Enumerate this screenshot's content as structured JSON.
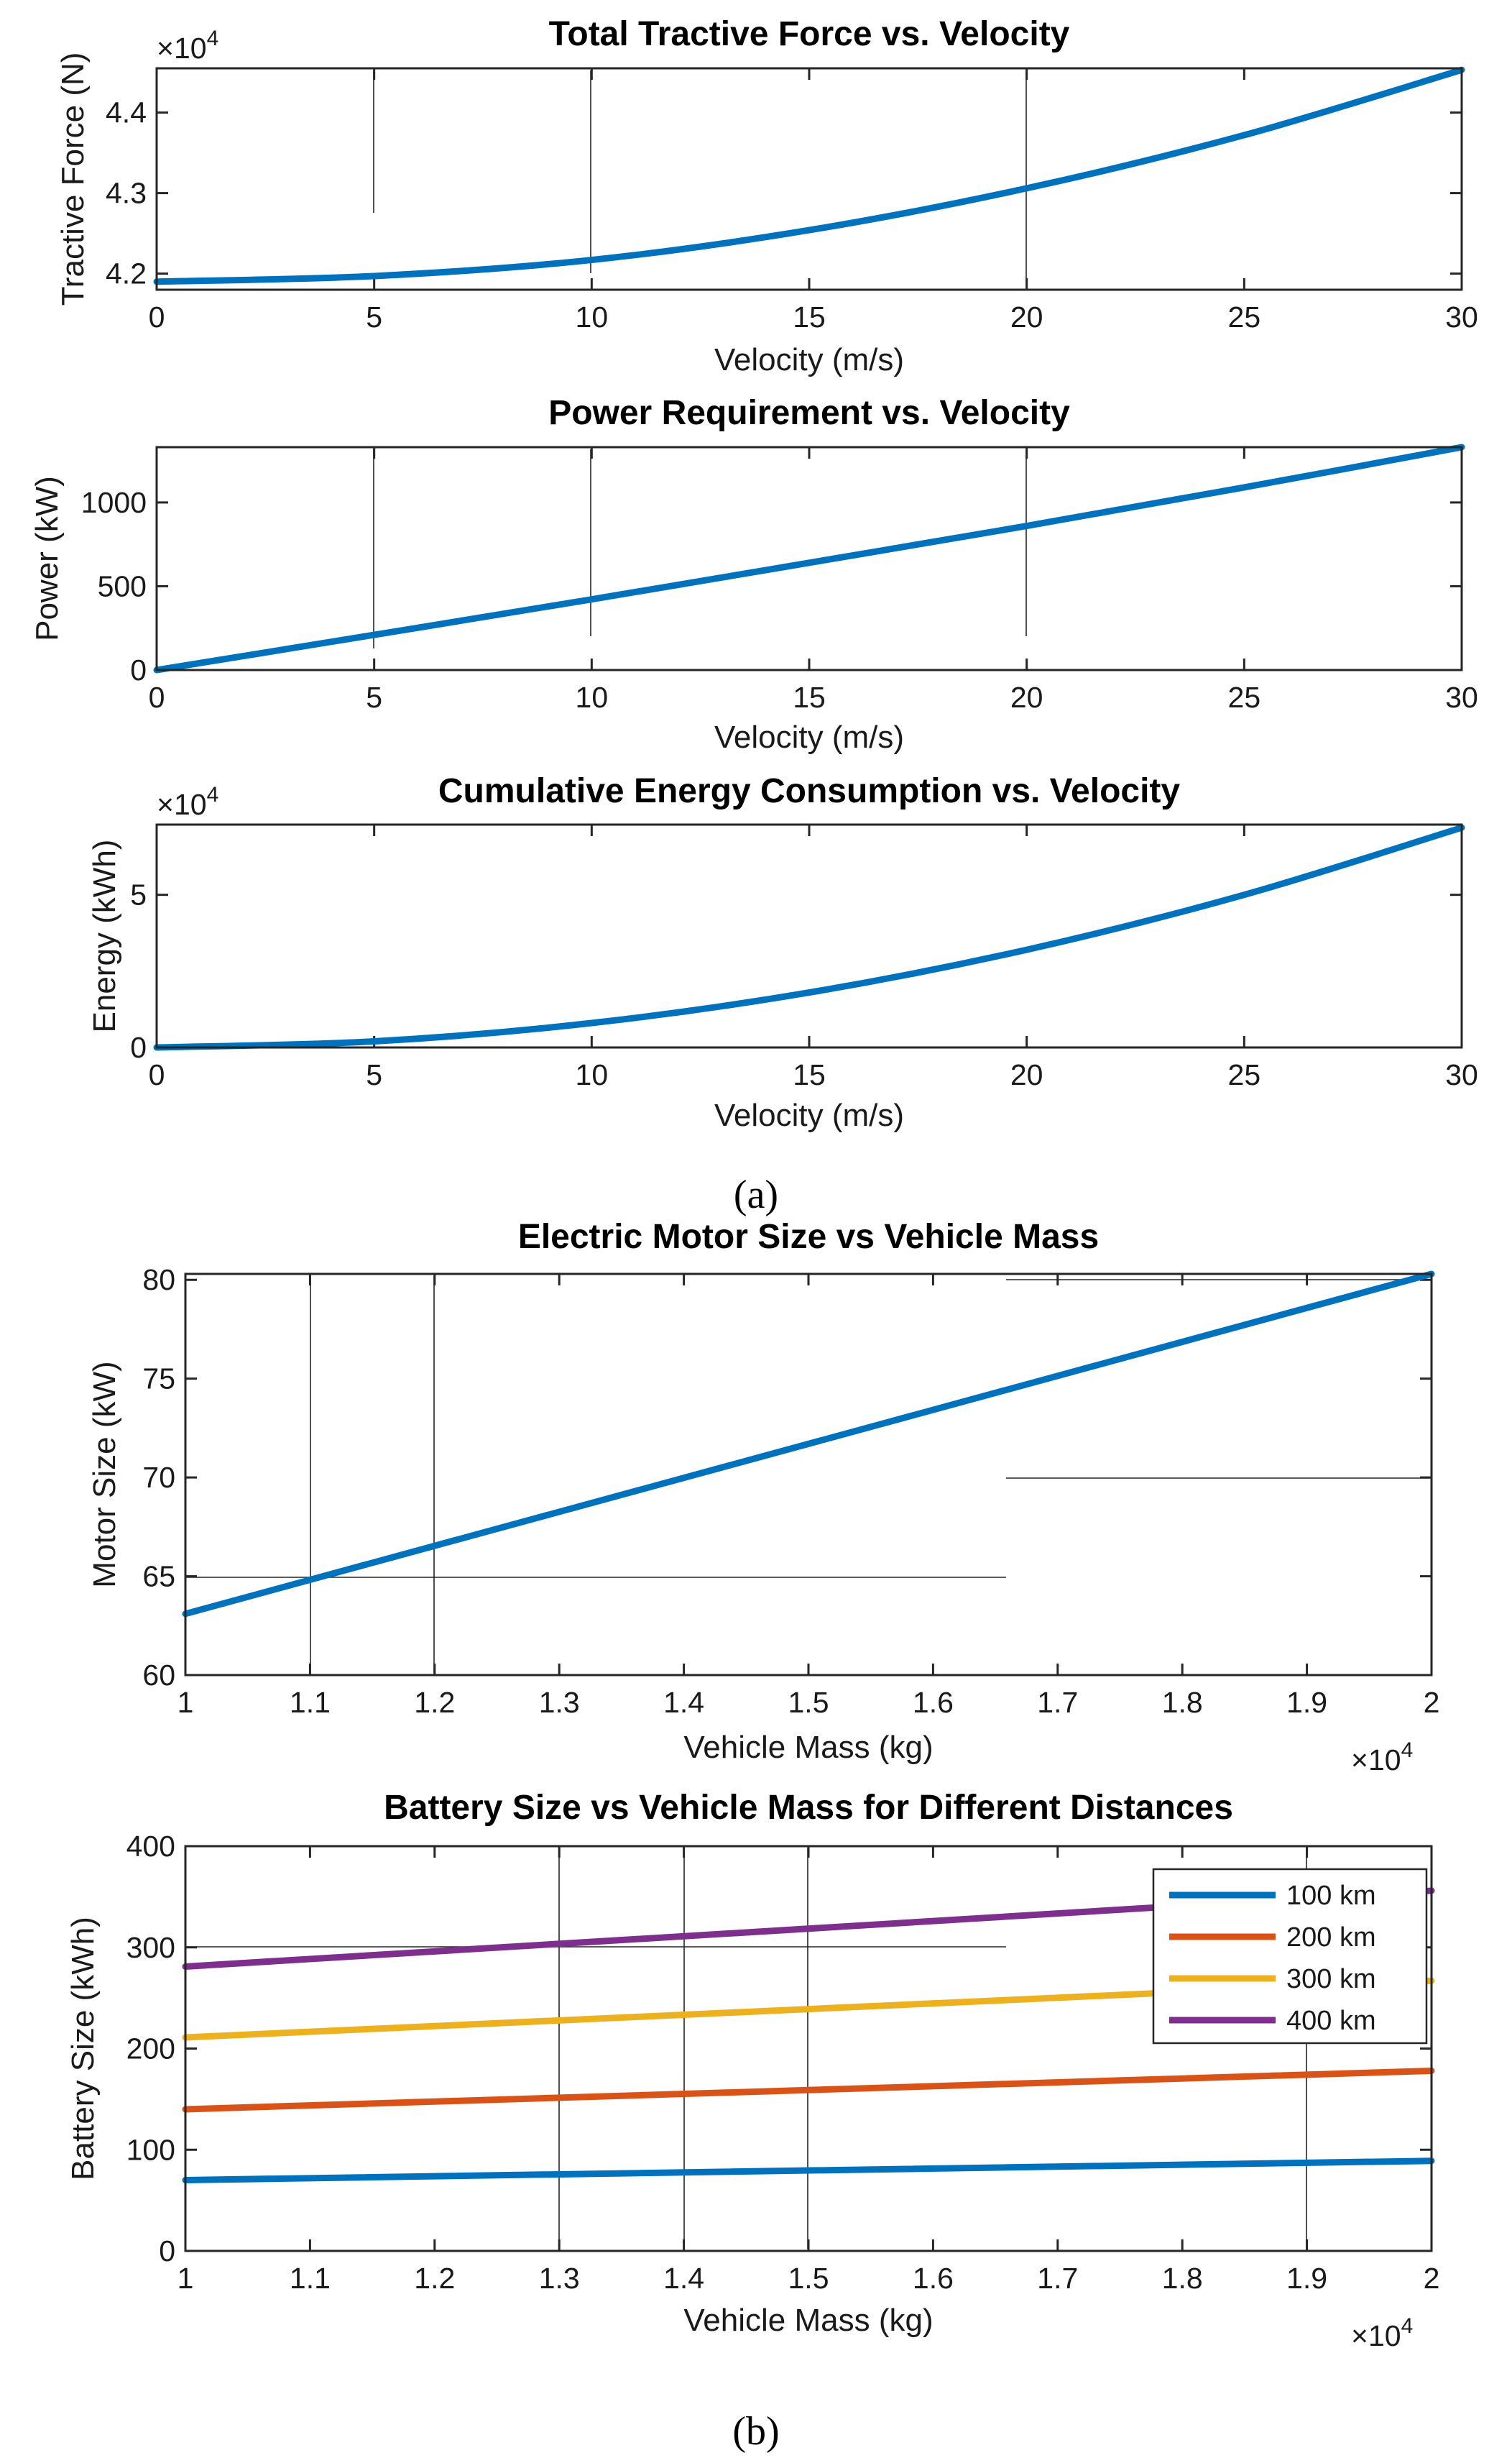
{
  "captions": {
    "a": "(a)",
    "b": "(b)"
  },
  "chart_data": [
    {
      "type": "line",
      "title": "Total Tractive Force vs. Velocity",
      "xlabel": "Velocity (m/s)",
      "ylabel": "Tractive Force (N)",
      "exponent_label": "×10",
      "exponent_power": "4",
      "xlim": [
        0,
        30
      ],
      "ylim": [
        4.18,
        4.455
      ],
      "xticks": [
        0,
        5,
        10,
        15,
        20,
        25,
        30
      ],
      "yticks": [
        4.2,
        4.3,
        4.4
      ],
      "xtick_labels": [
        "0",
        "5",
        "10",
        "15",
        "20",
        "25",
        "30"
      ],
      "ytick_labels": [
        "4.2",
        "4.3",
        "4.4"
      ],
      "series": [
        {
          "name": "Tractive Force",
          "color": "#0072BD",
          "x": [
            0,
            5,
            10,
            15,
            20,
            25,
            30
          ],
          "y": [
            4.19,
            4.197,
            4.217,
            4.254,
            4.306,
            4.372,
            4.453
          ]
        }
      ]
    },
    {
      "type": "line",
      "title": "Power Requirement vs. Velocity",
      "xlabel": "Velocity (m/s)",
      "ylabel": "Power (kW)",
      "xlim": [
        0,
        30
      ],
      "ylim": [
        0,
        1330
      ],
      "xticks": [
        0,
        5,
        10,
        15,
        20,
        25,
        30
      ],
      "yticks": [
        0,
        500,
        1000
      ],
      "xtick_labels": [
        "0",
        "5",
        "10",
        "15",
        "20",
        "25",
        "30"
      ],
      "ytick_labels": [
        "0",
        "500",
        "1000"
      ],
      "series": [
        {
          "name": "Power",
          "color": "#0072BD",
          "x": [
            0,
            5,
            10,
            15,
            20,
            25,
            30
          ],
          "y": [
            0,
            210,
            422,
            640,
            860,
            1090,
            1330
          ]
        }
      ]
    },
    {
      "type": "line",
      "title": "Cumulative Energy Consumption vs. Velocity",
      "xlabel": "Velocity (m/s)",
      "ylabel": "Energy (kWh)",
      "exponent_label": "×10",
      "exponent_power": "4",
      "xlim": [
        0,
        30
      ],
      "ylim": [
        0,
        7.3
      ],
      "xticks": [
        0,
        5,
        10,
        15,
        20,
        25,
        30
      ],
      "yticks": [
        0,
        5
      ],
      "xtick_labels": [
        "0",
        "5",
        "10",
        "15",
        "20",
        "25",
        "30"
      ],
      "ytick_labels": [
        "0",
        "5"
      ],
      "series": [
        {
          "name": "Energy",
          "color": "#0072BD",
          "x": [
            0,
            5,
            10,
            15,
            20,
            25,
            30
          ],
          "y": [
            0,
            0.2,
            0.8,
            1.8,
            3.2,
            5.0,
            7.2
          ]
        }
      ]
    },
    {
      "type": "line",
      "title": "Electric Motor Size vs Vehicle Mass",
      "xlabel": "Vehicle Mass (kg)",
      "ylabel": "Motor Size (kW)",
      "exponent_label": "×10",
      "exponent_power": "4",
      "xlim": [
        1,
        2
      ],
      "ylim": [
        60,
        80.3
      ],
      "xticks": [
        1,
        1.1,
        1.2,
        1.3,
        1.4,
        1.5,
        1.6,
        1.7,
        1.8,
        1.9,
        2
      ],
      "yticks": [
        60,
        65,
        70,
        75,
        80
      ],
      "xtick_labels": [
        "1",
        "1.1",
        "1.2",
        "1.3",
        "1.4",
        "1.5",
        "1.6",
        "1.7",
        "1.8",
        "1.9",
        "2"
      ],
      "ytick_labels": [
        "60",
        "65",
        "70",
        "75",
        "80"
      ],
      "series": [
        {
          "name": "Motor Size",
          "color": "#0072BD",
          "x": [
            1,
            2
          ],
          "y": [
            63.1,
            80.3
          ]
        }
      ]
    },
    {
      "type": "line",
      "title": "Battery Size vs Vehicle Mass for Different Distances",
      "xlabel": "Vehicle Mass (kg)",
      "ylabel": "Battery Size (kWh)",
      "exponent_label": "×10",
      "exponent_power": "4",
      "xlim": [
        1,
        2
      ],
      "ylim": [
        0,
        400
      ],
      "xticks": [
        1,
        1.1,
        1.2,
        1.3,
        1.4,
        1.5,
        1.6,
        1.7,
        1.8,
        1.9,
        2
      ],
      "yticks": [
        0,
        100,
        200,
        300,
        400
      ],
      "xtick_labels": [
        "1",
        "1.1",
        "1.2",
        "1.3",
        "1.4",
        "1.5",
        "1.6",
        "1.7",
        "1.8",
        "1.9",
        "2"
      ],
      "ytick_labels": [
        "0",
        "100",
        "200",
        "300",
        "400"
      ],
      "legend": "top-right",
      "series": [
        {
          "name": "100 km",
          "color": "#0072BD",
          "x": [
            1,
            2
          ],
          "y": [
            70,
            89
          ]
        },
        {
          "name": "200 km",
          "color": "#D95319",
          "x": [
            1,
            2
          ],
          "y": [
            140,
            178
          ]
        },
        {
          "name": "300 km",
          "color": "#EDB120",
          "x": [
            1,
            2
          ],
          "y": [
            211,
            267
          ]
        },
        {
          "name": "400 km",
          "color": "#7E2F8E",
          "x": [
            1,
            2
          ],
          "y": [
            281,
            356
          ]
        }
      ]
    }
  ]
}
